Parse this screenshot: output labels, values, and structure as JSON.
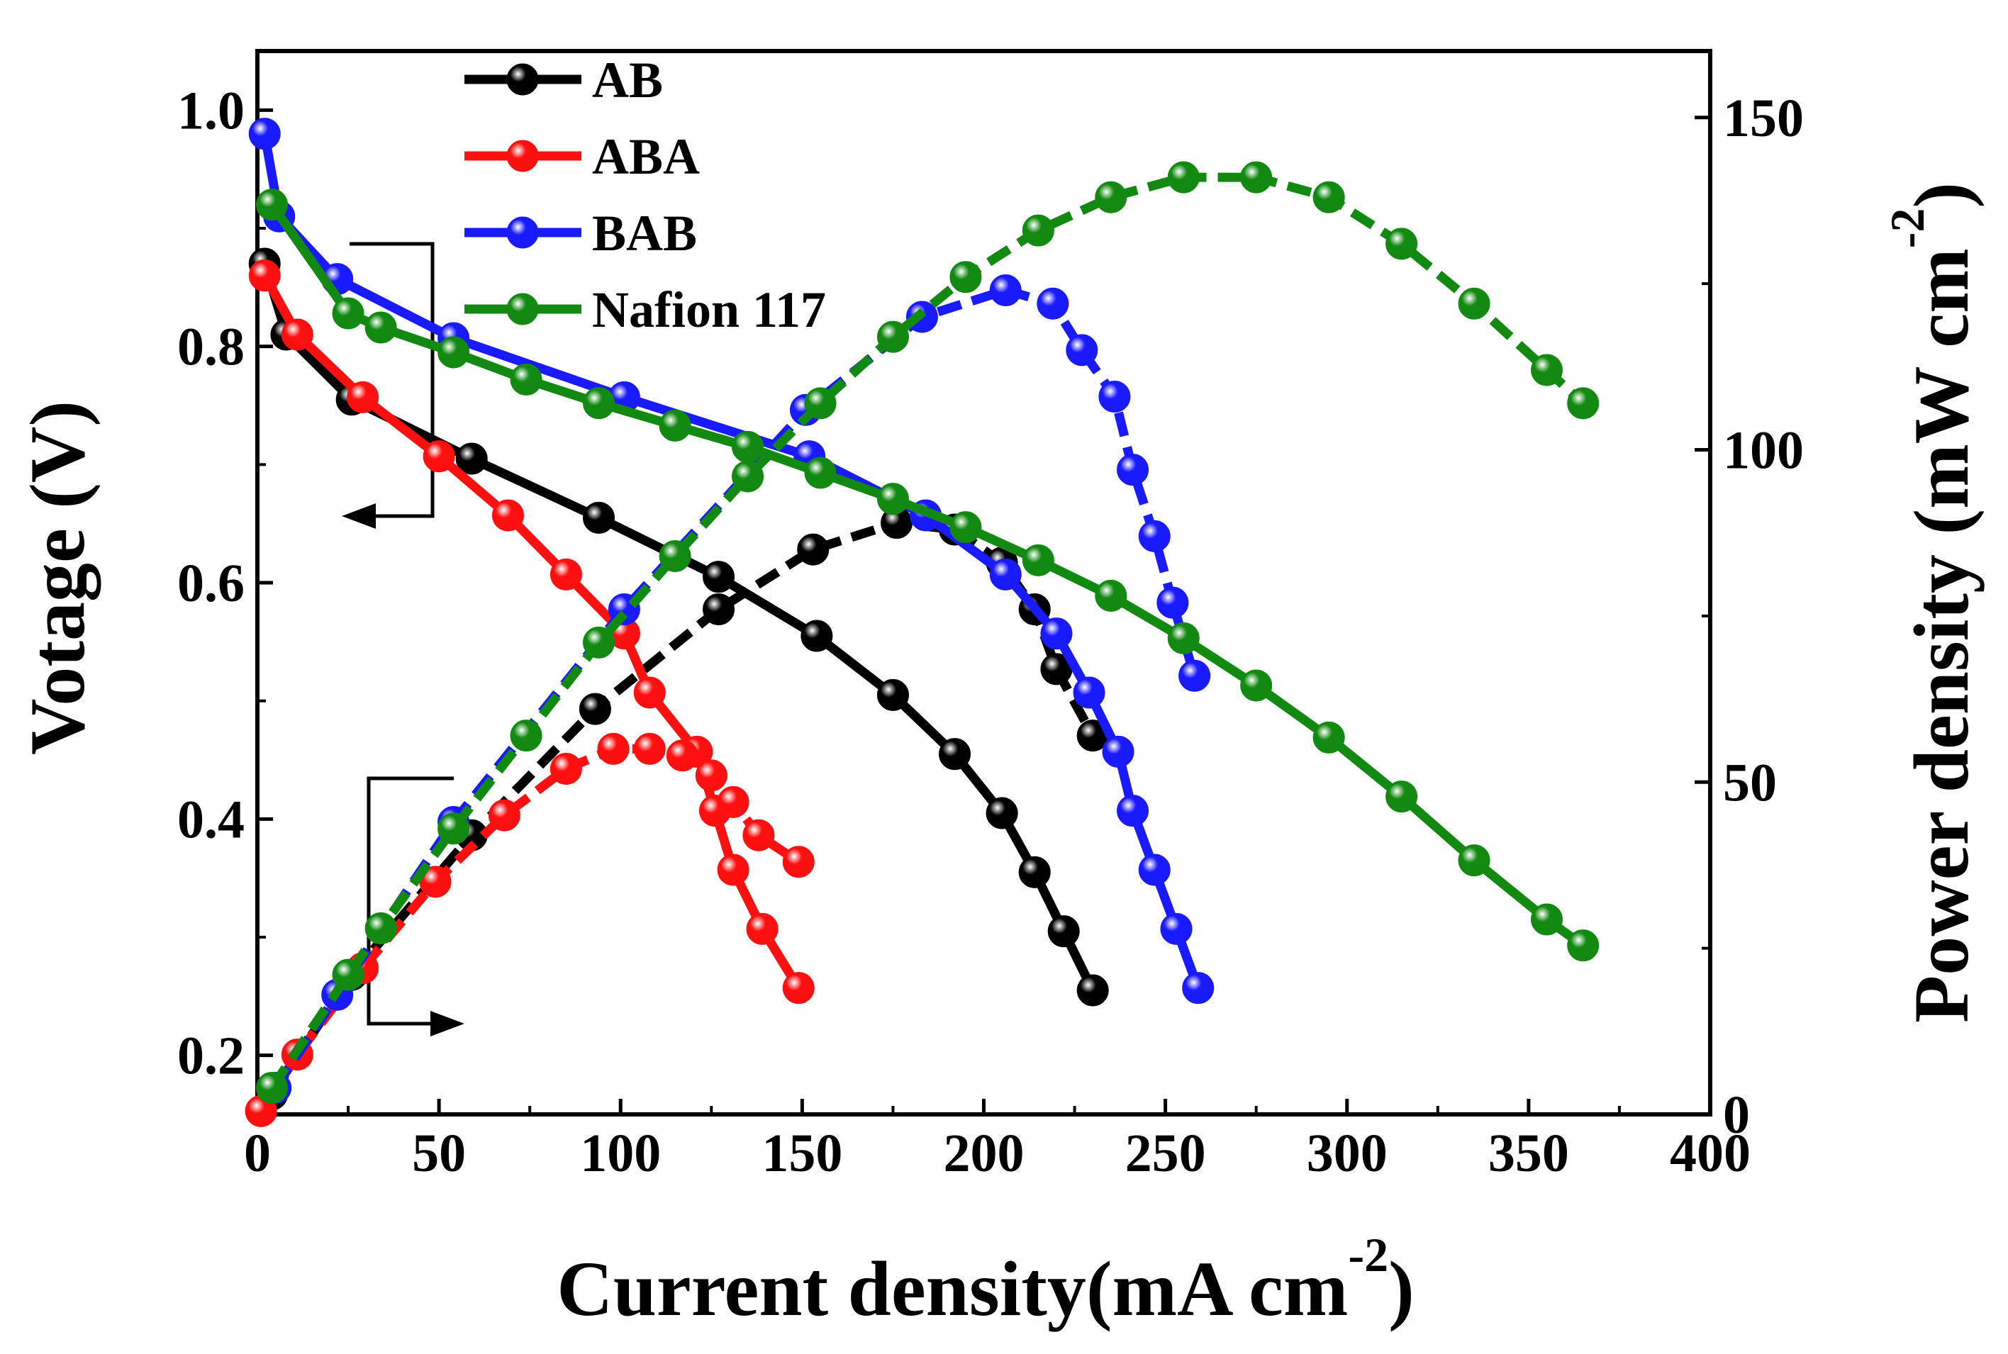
{
  "chart_data": {
    "type": "line",
    "title": "",
    "xlabel": "Current density(mA cm",
    "xlabel_sup": "-2",
    "xlabel_end": ")",
    "ylabel_left": "Votage (V)",
    "ylabel_right": "Power density (mW cm",
    "ylabel_right_sup": "-2",
    "ylabel_right_end": ")",
    "xlim": [
      0,
      400
    ],
    "ylim_left": [
      0.15,
      1.05
    ],
    "ylim_right": [
      0,
      160
    ],
    "x_ticks": [
      0,
      50,
      100,
      150,
      200,
      250,
      300,
      350,
      400
    ],
    "y_left_ticks": [
      0.2,
      0.4,
      0.6,
      0.8,
      1.0
    ],
    "y_left_tick_labels": [
      "0.2",
      "0.4",
      "0.6",
      "0.8",
      "1.0"
    ],
    "y_right_ticks": [
      0,
      50,
      100,
      150
    ],
    "legend_position": "top-left",
    "series": [
      {
        "name": "AB",
        "color": "#000000",
        "voltage": {
          "x": [
            2,
            8,
            26,
            59,
            94,
            127,
            154,
            175,
            192,
            205,
            214,
            222,
            230
          ],
          "y": [
            0.87,
            0.81,
            0.755,
            0.705,
            0.655,
            0.605,
            0.555,
            0.505,
            0.455,
            0.405,
            0.355,
            0.305,
            0.255
          ]
        },
        "power": {
          "x": [
            4,
            26,
            59,
            93,
            127,
            153,
            176,
            192,
            205,
            214,
            220,
            230
          ],
          "y": [
            3,
            21,
            42,
            61,
            76,
            85,
            89,
            88,
            83,
            76,
            67,
            57
          ]
        }
      },
      {
        "name": "ABA",
        "color": "#ff1010",
        "voltage": {
          "x": [
            2,
            11,
            29,
            50,
            69,
            85,
            101,
            108,
            121,
            126,
            131,
            139,
            149
          ],
          "y": [
            0.86,
            0.81,
            0.757,
            0.707,
            0.657,
            0.607,
            0.557,
            0.507,
            0.457,
            0.407,
            0.357,
            0.307,
            0.257
          ]
        },
        "power": {
          "x": [
            1,
            11,
            29,
            49,
            68,
            85,
            98,
            108,
            117,
            125,
            131,
            138,
            149
          ],
          "y": [
            0.5,
            9,
            22,
            35,
            45,
            52,
            55,
            55,
            54,
            51,
            47,
            42,
            38
          ]
        }
      },
      {
        "name": "BAB",
        "color": "#1a1aff",
        "voltage": {
          "x": [
            2,
            6,
            22,
            54,
            101,
            152,
            184,
            206,
            220,
            229,
            237,
            241,
            247,
            253,
            259
          ],
          "y": [
            0.98,
            0.91,
            0.857,
            0.807,
            0.757,
            0.707,
            0.657,
            0.607,
            0.557,
            0.507,
            0.457,
            0.407,
            0.357,
            0.307,
            0.257
          ]
        },
        "power": {
          "x": [
            5,
            22,
            54,
            101,
            151,
            183,
            206,
            219,
            227,
            236,
            241,
            247,
            252,
            258
          ],
          "y": [
            4,
            18,
            44,
            76,
            106,
            120,
            124,
            122,
            115,
            108,
            97,
            87,
            77,
            66
          ]
        }
      },
      {
        "name": "Nafion 117",
        "color": "#128a12",
        "voltage": {
          "x": [
            4,
            25,
            34,
            54,
            74,
            94,
            115,
            135,
            155,
            175,
            195,
            215,
            235,
            255,
            275,
            295,
            315,
            335,
            355,
            365
          ],
          "y": [
            0.92,
            0.828,
            0.816,
            0.795,
            0.772,
            0.752,
            0.733,
            0.715,
            0.693,
            0.671,
            0.647,
            0.619,
            0.589,
            0.553,
            0.513,
            0.469,
            0.419,
            0.365,
            0.315,
            0.293
          ]
        },
        "power": {
          "x": [
            4,
            25,
            34,
            54,
            74,
            94,
            115,
            135,
            155,
            175,
            195,
            215,
            235,
            255,
            275,
            295,
            315,
            335,
            355,
            365
          ],
          "y": [
            4,
            21,
            28,
            43,
            57,
            71,
            84,
            96,
            107,
            117,
            126,
            133,
            138,
            141,
            141,
            138,
            131,
            122,
            112,
            107
          ]
        }
      }
    ]
  }
}
